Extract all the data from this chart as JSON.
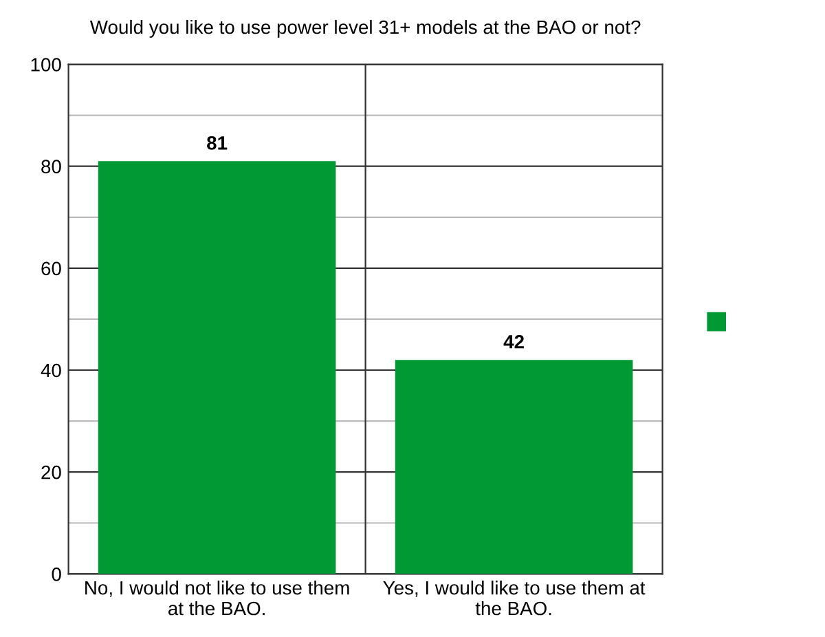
{
  "chart_data": {
    "type": "bar",
    "title": "Would you like to use power level 31+ models at the BAO or not?",
    "categories": [
      "No, I would not like to use them\nat the BAO.",
      "Yes, I would like to use them at\nthe BAO."
    ],
    "series": [
      {
        "color": "#009933",
        "values": [
          81,
          42
        ]
      }
    ],
    "ylim": [
      0,
      100
    ],
    "yticks": [
      0,
      {
        "value": 10,
        "label": null
      },
      20,
      {
        "value": 30,
        "label": null
      },
      40,
      {
        "value": 50,
        "label": null
      },
      60,
      {
        "value": 70,
        "label": null
      },
      80,
      {
        "value": 90,
        "label": null
      },
      100
    ],
    "grid": true,
    "data_labels": true
  }
}
